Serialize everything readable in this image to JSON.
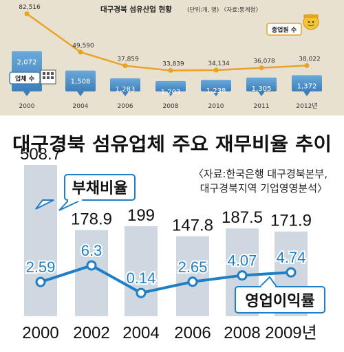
{
  "colors": {
    "top_panel_bg": "#e9e1cf",
    "top_line": "#e8a224",
    "top_bar": "#5b9bd0",
    "top_bar_dark": "#3f7fb8",
    "bottom_bar": "#cfd8e0",
    "bottom_line": "#1f7fc6",
    "label_border": "#1f7fc6",
    "text_dark": "#222222",
    "text_blue": "#1f7fc6"
  },
  "top": {
    "title": "대구경북 섬유산업 현황",
    "note": "(단위:개, 명) 〈자료:통계청〉",
    "employees_label": "종업원 수",
    "companies_label": "업체 수"
  },
  "bottom": {
    "title": "대구경북 섬유업체 주요 재무비율 추이",
    "source_line1": "〈자료:한국은행 대구경북본부,",
    "source_line2": "대구경북지역 기업영영분석〉",
    "debt_label": "부채비율",
    "profit_label": "영업이익률"
  },
  "chart_data": [
    {
      "type": "bar",
      "title": "대구경북 섬유산업 현황",
      "categories": [
        "2000",
        "2004",
        "2006",
        "2008",
        "2010",
        "2011",
        "2012년"
      ],
      "series": [
        {
          "name": "업체 수",
          "values": [
            2072,
            1508,
            1283,
            1203,
            1238,
            1305,
            1372
          ],
          "value_labels": [
            "2,072",
            "1,508",
            "1,283",
            "1,203",
            "1,238",
            "1,305",
            "1,372"
          ]
        },
        {
          "name": "종업원 수",
          "type": "line",
          "values": [
            82516,
            49590,
            37859,
            33839,
            34134,
            36078,
            38022
          ],
          "value_labels": [
            "82,516",
            "49,590",
            "37,859",
            "33,839",
            "34,134",
            "36,078",
            "38,022"
          ]
        }
      ]
    },
    {
      "type": "bar",
      "title": "대구경북 섬유업체 주요 재무비율 추이",
      "categories": [
        "2000",
        "2002",
        "2004",
        "2006",
        "2008",
        "2009년"
      ],
      "series": [
        {
          "name": "부채비율",
          "values": [
            508.7,
            178.9,
            199,
            147.8,
            187.5,
            171.9
          ],
          "value_labels": [
            "508.7",
            "178.9",
            "199",
            "147.8",
            "187.5",
            "171.9"
          ]
        },
        {
          "name": "영업이익률",
          "type": "line",
          "values": [
            2.59,
            6.3,
            0.14,
            2.65,
            4.07,
            4.74
          ],
          "value_labels": [
            "2.59",
            "6.3",
            "0.14",
            "2.65",
            "4.07",
            "4.74"
          ]
        }
      ]
    }
  ]
}
